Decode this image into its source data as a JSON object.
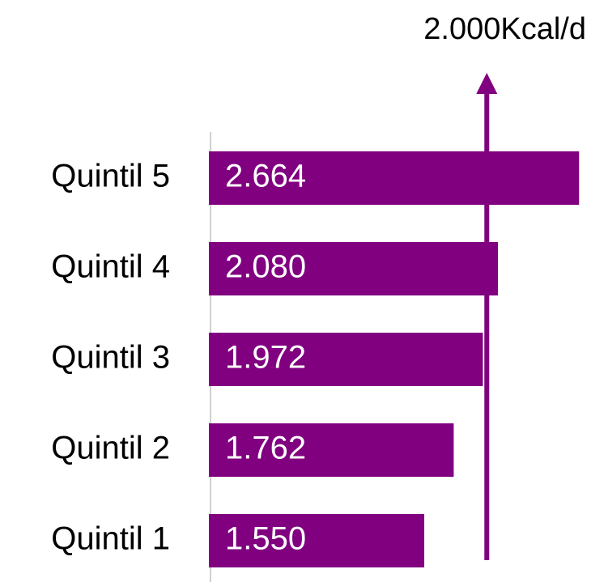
{
  "chart_data": {
    "type": "barh",
    "categories": [
      "Quintil 5",
      "Quintil 4",
      "Quintil 3",
      "Quintil 2",
      "Quintil 1"
    ],
    "values": [
      2664,
      2080,
      1972,
      1762,
      1550
    ],
    "value_labels": [
      "2.664",
      "2.080",
      "1.972",
      "1.762",
      "1.550"
    ],
    "color": "#800080",
    "xlim": [
      0,
      2750
    ],
    "reference_line": {
      "value": 2000,
      "label": "2.000Kcal/d"
    }
  }
}
